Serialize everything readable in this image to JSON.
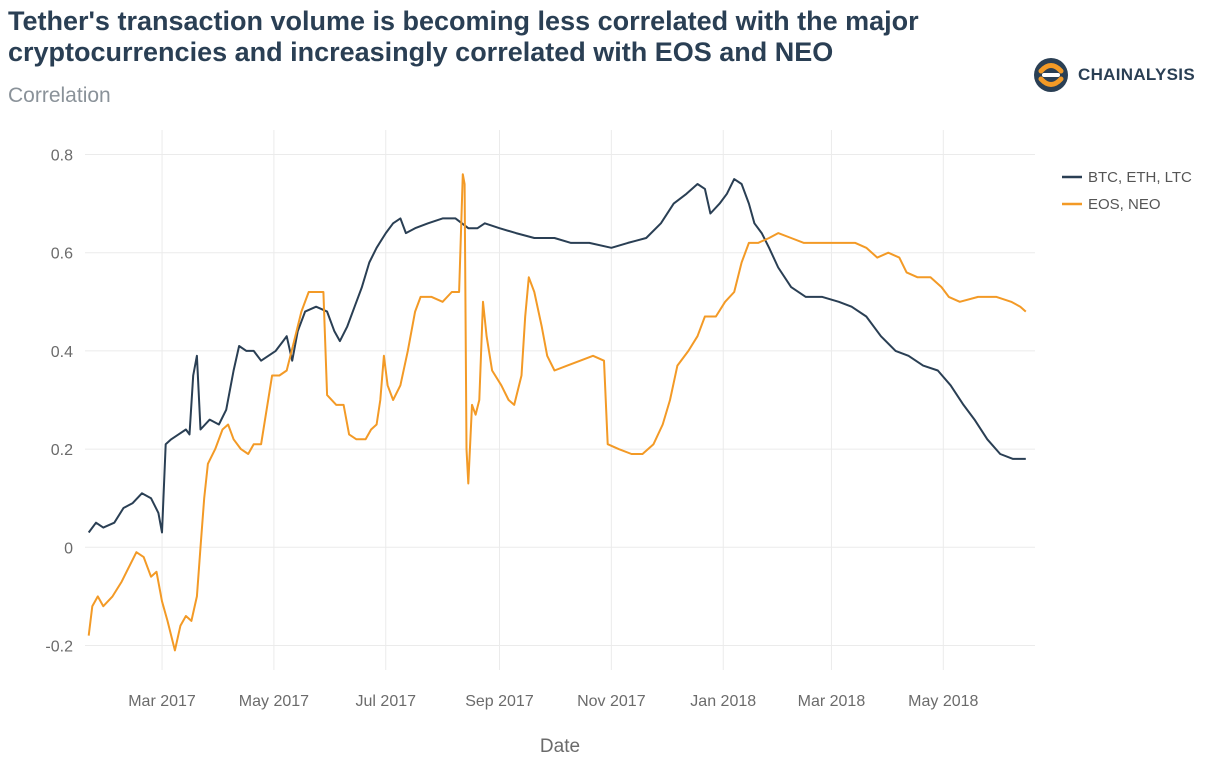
{
  "header": {
    "title": "Tether's transaction volume is becoming less correlated with the major cryptocurrencies and increasingly correlated with EOS and NEO",
    "subtitle": "Correlation"
  },
  "brand": {
    "name": "CHAINALYSIS",
    "logo_icon": "chainalysis-logo-icon",
    "colors": [
      "#2a3f54",
      "#f39a26"
    ]
  },
  "chart_data": {
    "type": "line",
    "xlabel": "Date",
    "ylabel": "",
    "xlim": [
      "2017-01-18",
      "2018-06-20"
    ],
    "ylim": [
      -0.25,
      0.85
    ],
    "y_ticks": [
      -0.2,
      0,
      0.2,
      0.4,
      0.6,
      0.8
    ],
    "y_tick_labels": [
      "-0.2",
      "0",
      "0.2",
      "0.4",
      "0.6",
      "0.8"
    ],
    "x_ticks": [
      {
        "date": "2017-03-01",
        "label": "Mar 2017"
      },
      {
        "date": "2017-05-01",
        "label": "May 2017"
      },
      {
        "date": "2017-07-01",
        "label": "Jul 2017"
      },
      {
        "date": "2017-09-01",
        "label": "Sep 2017"
      },
      {
        "date": "2017-11-01",
        "label": "Nov 2017"
      },
      {
        "date": "2018-01-01",
        "label": "Jan 2018"
      },
      {
        "date": "2018-03-01",
        "label": "Mar 2018"
      },
      {
        "date": "2018-05-01",
        "label": "May 2018"
      }
    ],
    "grid": true,
    "legend": "right",
    "series": [
      {
        "name": "BTC, ETH, LTC",
        "color": "#2a3f54",
        "points": [
          [
            "2017-01-20",
            0.03
          ],
          [
            "2017-01-24",
            0.05
          ],
          [
            "2017-01-28",
            0.04
          ],
          [
            "2017-02-03",
            0.05
          ],
          [
            "2017-02-08",
            0.08
          ],
          [
            "2017-02-13",
            0.09
          ],
          [
            "2017-02-18",
            0.11
          ],
          [
            "2017-02-23",
            0.1
          ],
          [
            "2017-02-27",
            0.07
          ],
          [
            "2017-03-01",
            0.03
          ],
          [
            "2017-03-03",
            0.21
          ],
          [
            "2017-03-06",
            0.22
          ],
          [
            "2017-03-10",
            0.23
          ],
          [
            "2017-03-14",
            0.24
          ],
          [
            "2017-03-16",
            0.23
          ],
          [
            "2017-03-18",
            0.35
          ],
          [
            "2017-03-20",
            0.39
          ],
          [
            "2017-03-22",
            0.24
          ],
          [
            "2017-03-27",
            0.26
          ],
          [
            "2017-04-01",
            0.25
          ],
          [
            "2017-04-05",
            0.28
          ],
          [
            "2017-04-09",
            0.36
          ],
          [
            "2017-04-12",
            0.41
          ],
          [
            "2017-04-16",
            0.4
          ],
          [
            "2017-04-20",
            0.4
          ],
          [
            "2017-04-24",
            0.38
          ],
          [
            "2017-04-28",
            0.39
          ],
          [
            "2017-05-02",
            0.4
          ],
          [
            "2017-05-06",
            0.42
          ],
          [
            "2017-05-08",
            0.43
          ],
          [
            "2017-05-11",
            0.38
          ],
          [
            "2017-05-14",
            0.44
          ],
          [
            "2017-05-18",
            0.48
          ],
          [
            "2017-05-24",
            0.49
          ],
          [
            "2017-05-30",
            0.48
          ],
          [
            "2017-06-03",
            0.44
          ],
          [
            "2017-06-06",
            0.42
          ],
          [
            "2017-06-10",
            0.45
          ],
          [
            "2017-06-14",
            0.49
          ],
          [
            "2017-06-18",
            0.53
          ],
          [
            "2017-06-22",
            0.58
          ],
          [
            "2017-06-26",
            0.61
          ],
          [
            "2017-07-01",
            0.64
          ],
          [
            "2017-07-05",
            0.66
          ],
          [
            "2017-07-09",
            0.67
          ],
          [
            "2017-07-12",
            0.64
          ],
          [
            "2017-07-17",
            0.65
          ],
          [
            "2017-07-24",
            0.66
          ],
          [
            "2017-08-01",
            0.67
          ],
          [
            "2017-08-08",
            0.67
          ],
          [
            "2017-08-15",
            0.65
          ],
          [
            "2017-08-20",
            0.65
          ],
          [
            "2017-08-24",
            0.66
          ],
          [
            "2017-09-01",
            0.65
          ],
          [
            "2017-09-10",
            0.64
          ],
          [
            "2017-09-20",
            0.63
          ],
          [
            "2017-10-01",
            0.63
          ],
          [
            "2017-10-10",
            0.62
          ],
          [
            "2017-10-20",
            0.62
          ],
          [
            "2017-11-01",
            0.61
          ],
          [
            "2017-11-10",
            0.62
          ],
          [
            "2017-11-20",
            0.63
          ],
          [
            "2017-11-28",
            0.66
          ],
          [
            "2017-12-05",
            0.7
          ],
          [
            "2017-12-12",
            0.72
          ],
          [
            "2017-12-18",
            0.74
          ],
          [
            "2017-12-22",
            0.73
          ],
          [
            "2017-12-25",
            0.68
          ],
          [
            "2017-12-30",
            0.7
          ],
          [
            "2018-01-03",
            0.72
          ],
          [
            "2018-01-07",
            0.75
          ],
          [
            "2018-01-11",
            0.74
          ],
          [
            "2018-01-15",
            0.7
          ],
          [
            "2018-01-18",
            0.66
          ],
          [
            "2018-01-22",
            0.64
          ],
          [
            "2018-01-26",
            0.61
          ],
          [
            "2018-01-31",
            0.57
          ],
          [
            "2018-02-07",
            0.53
          ],
          [
            "2018-02-15",
            0.51
          ],
          [
            "2018-02-24",
            0.51
          ],
          [
            "2018-03-05",
            0.5
          ],
          [
            "2018-03-12",
            0.49
          ],
          [
            "2018-03-20",
            0.47
          ],
          [
            "2018-03-28",
            0.43
          ],
          [
            "2018-04-05",
            0.4
          ],
          [
            "2018-04-12",
            0.39
          ],
          [
            "2018-04-20",
            0.37
          ],
          [
            "2018-04-28",
            0.36
          ],
          [
            "2018-05-05",
            0.33
          ],
          [
            "2018-05-12",
            0.29
          ],
          [
            "2018-05-18",
            0.26
          ],
          [
            "2018-05-25",
            0.22
          ],
          [
            "2018-06-01",
            0.19
          ],
          [
            "2018-06-08",
            0.18
          ],
          [
            "2018-06-15",
            0.18
          ]
        ]
      },
      {
        "name": "EOS, NEO",
        "color": "#f39a26",
        "points": [
          [
            "2017-01-20",
            -0.18
          ],
          [
            "2017-01-22",
            -0.12
          ],
          [
            "2017-01-25",
            -0.1
          ],
          [
            "2017-01-28",
            -0.12
          ],
          [
            "2017-02-02",
            -0.1
          ],
          [
            "2017-02-07",
            -0.07
          ],
          [
            "2017-02-11",
            -0.04
          ],
          [
            "2017-02-15",
            -0.01
          ],
          [
            "2017-02-19",
            -0.02
          ],
          [
            "2017-02-23",
            -0.06
          ],
          [
            "2017-02-26",
            -0.05
          ],
          [
            "2017-03-01",
            -0.11
          ],
          [
            "2017-03-04",
            -0.15
          ],
          [
            "2017-03-08",
            -0.21
          ],
          [
            "2017-03-11",
            -0.16
          ],
          [
            "2017-03-14",
            -0.14
          ],
          [
            "2017-03-17",
            -0.15
          ],
          [
            "2017-03-20",
            -0.1
          ],
          [
            "2017-03-22",
            0.0
          ],
          [
            "2017-03-24",
            0.1
          ],
          [
            "2017-03-26",
            0.17
          ],
          [
            "2017-03-30",
            0.2
          ],
          [
            "2017-04-03",
            0.24
          ],
          [
            "2017-04-06",
            0.25
          ],
          [
            "2017-04-09",
            0.22
          ],
          [
            "2017-04-13",
            0.2
          ],
          [
            "2017-04-17",
            0.19
          ],
          [
            "2017-04-20",
            0.21
          ],
          [
            "2017-04-24",
            0.21
          ],
          [
            "2017-04-27",
            0.28
          ],
          [
            "2017-04-30",
            0.35
          ],
          [
            "2017-05-04",
            0.35
          ],
          [
            "2017-05-08",
            0.36
          ],
          [
            "2017-05-12",
            0.42
          ],
          [
            "2017-05-16",
            0.48
          ],
          [
            "2017-05-20",
            0.52
          ],
          [
            "2017-05-24",
            0.52
          ],
          [
            "2017-05-28",
            0.52
          ],
          [
            "2017-05-30",
            0.31
          ],
          [
            "2017-06-04",
            0.29
          ],
          [
            "2017-06-08",
            0.29
          ],
          [
            "2017-06-11",
            0.23
          ],
          [
            "2017-06-15",
            0.22
          ],
          [
            "2017-06-20",
            0.22
          ],
          [
            "2017-06-23",
            0.24
          ],
          [
            "2017-06-26",
            0.25
          ],
          [
            "2017-06-28",
            0.3
          ],
          [
            "2017-06-30",
            0.39
          ],
          [
            "2017-07-02",
            0.33
          ],
          [
            "2017-07-05",
            0.3
          ],
          [
            "2017-07-09",
            0.33
          ],
          [
            "2017-07-13",
            0.4
          ],
          [
            "2017-07-17",
            0.48
          ],
          [
            "2017-07-20",
            0.51
          ],
          [
            "2017-07-26",
            0.51
          ],
          [
            "2017-08-01",
            0.5
          ],
          [
            "2017-08-06",
            0.52
          ],
          [
            "2017-08-10",
            0.52
          ],
          [
            "2017-08-12",
            0.76
          ],
          [
            "2017-08-13",
            0.74
          ],
          [
            "2017-08-14",
            0.2
          ],
          [
            "2017-08-15",
            0.13
          ],
          [
            "2017-08-17",
            0.29
          ],
          [
            "2017-08-19",
            0.27
          ],
          [
            "2017-08-21",
            0.3
          ],
          [
            "2017-08-23",
            0.5
          ],
          [
            "2017-08-25",
            0.43
          ],
          [
            "2017-08-28",
            0.36
          ],
          [
            "2017-09-02",
            0.33
          ],
          [
            "2017-09-06",
            0.3
          ],
          [
            "2017-09-09",
            0.29
          ],
          [
            "2017-09-13",
            0.35
          ],
          [
            "2017-09-15",
            0.47
          ],
          [
            "2017-09-17",
            0.55
          ],
          [
            "2017-09-20",
            0.52
          ],
          [
            "2017-09-24",
            0.45
          ],
          [
            "2017-09-27",
            0.39
          ],
          [
            "2017-10-01",
            0.36
          ],
          [
            "2017-10-08",
            0.37
          ],
          [
            "2017-10-15",
            0.38
          ],
          [
            "2017-10-22",
            0.39
          ],
          [
            "2017-10-28",
            0.38
          ],
          [
            "2017-10-30",
            0.21
          ],
          [
            "2017-11-05",
            0.2
          ],
          [
            "2017-11-12",
            0.19
          ],
          [
            "2017-11-18",
            0.19
          ],
          [
            "2017-11-24",
            0.21
          ],
          [
            "2017-11-29",
            0.25
          ],
          [
            "2017-12-03",
            0.3
          ],
          [
            "2017-12-07",
            0.37
          ],
          [
            "2017-12-13",
            0.4
          ],
          [
            "2017-12-18",
            0.43
          ],
          [
            "2017-12-22",
            0.47
          ],
          [
            "2017-12-28",
            0.47
          ],
          [
            "2018-01-02",
            0.5
          ],
          [
            "2018-01-07",
            0.52
          ],
          [
            "2018-01-11",
            0.58
          ],
          [
            "2018-01-15",
            0.62
          ],
          [
            "2018-01-20",
            0.62
          ],
          [
            "2018-01-26",
            0.63
          ],
          [
            "2018-01-31",
            0.64
          ],
          [
            "2018-02-07",
            0.63
          ],
          [
            "2018-02-14",
            0.62
          ],
          [
            "2018-02-24",
            0.62
          ],
          [
            "2018-03-05",
            0.62
          ],
          [
            "2018-03-14",
            0.62
          ],
          [
            "2018-03-20",
            0.61
          ],
          [
            "2018-03-26",
            0.59
          ],
          [
            "2018-04-01",
            0.6
          ],
          [
            "2018-04-07",
            0.59
          ],
          [
            "2018-04-11",
            0.56
          ],
          [
            "2018-04-17",
            0.55
          ],
          [
            "2018-04-24",
            0.55
          ],
          [
            "2018-04-30",
            0.53
          ],
          [
            "2018-05-04",
            0.51
          ],
          [
            "2018-05-10",
            0.5
          ],
          [
            "2018-05-20",
            0.51
          ],
          [
            "2018-05-30",
            0.51
          ],
          [
            "2018-06-07",
            0.5
          ],
          [
            "2018-06-12",
            0.49
          ],
          [
            "2018-06-15",
            0.48
          ]
        ]
      }
    ]
  }
}
